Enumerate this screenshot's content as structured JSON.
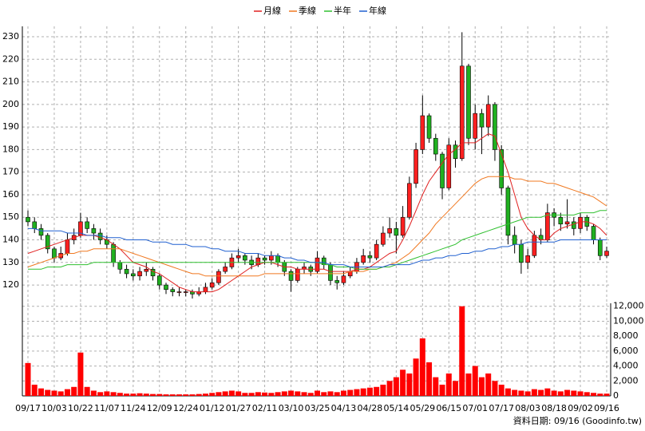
{
  "chart_data": {
    "type": "candlestick",
    "series": [
      {
        "name": "月線",
        "color": "#e02020",
        "values": [
          134,
          135,
          136,
          137,
          138,
          139,
          140,
          141,
          142,
          142,
          142,
          141,
          140,
          138,
          136,
          133,
          130,
          129,
          128,
          126,
          125,
          123,
          121,
          119,
          118,
          117,
          117,
          117,
          117,
          118,
          120,
          122,
          124,
          126,
          128,
          129,
          130,
          130,
          129,
          128,
          128,
          127,
          127,
          127,
          127,
          127,
          126,
          126,
          126,
          126,
          127,
          127,
          128,
          130,
          132,
          134,
          135,
          140,
          146,
          153,
          160,
          166,
          170,
          174,
          178,
          180,
          183,
          183,
          183,
          185,
          187,
          186,
          178,
          170,
          160,
          150,
          145,
          142,
          140,
          140,
          143,
          145,
          146,
          147,
          148,
          148,
          147,
          145,
          142
        ]
      },
      {
        "name": "季線",
        "color": "#f07820",
        "values": [
          128,
          129,
          130,
          131,
          132,
          133,
          134,
          134,
          135,
          135,
          136,
          136,
          136,
          136,
          136,
          135,
          134,
          133,
          132,
          131,
          130,
          129,
          128,
          127,
          126,
          125,
          125,
          124,
          124,
          124,
          124,
          124,
          124,
          124,
          124,
          124,
          125,
          125,
          125,
          125,
          125,
          125,
          125,
          125,
          125,
          125,
          125,
          125,
          125,
          126,
          126,
          126,
          127,
          127,
          128,
          129,
          130,
          132,
          134,
          137,
          140,
          143,
          147,
          150,
          153,
          156,
          159,
          162,
          165,
          167,
          168,
          168,
          168,
          168,
          167,
          167,
          166,
          166,
          166,
          165,
          165,
          164,
          163,
          162,
          161,
          160,
          159,
          157,
          155
        ]
      },
      {
        "name": "半年",
        "color": "#30c030",
        "values": [
          127,
          127,
          127,
          128,
          128,
          128,
          129,
          129,
          129,
          129,
          130,
          130,
          130,
          130,
          130,
          130,
          130,
          130,
          130,
          130,
          130,
          130,
          130,
          130,
          130,
          130,
          130,
          130,
          130,
          130,
          130,
          130,
          130,
          130,
          130,
          130,
          130,
          130,
          130,
          130,
          130,
          130,
          130,
          130,
          130,
          129,
          129,
          128,
          128,
          128,
          127,
          127,
          127,
          127,
          128,
          128,
          129,
          130,
          131,
          132,
          133,
          134,
          135,
          136,
          137,
          138,
          140,
          141,
          142,
          143,
          144,
          145,
          146,
          147,
          148,
          149,
          150,
          150,
          150,
          151,
          151,
          151,
          151,
          151,
          152,
          152,
          152,
          153,
          153
        ]
      },
      {
        "name": "年線",
        "color": "#2060d0",
        "values": [
          145,
          145,
          144,
          144,
          144,
          144,
          143,
          143,
          143,
          142,
          142,
          142,
          141,
          141,
          141,
          140,
          140,
          140,
          140,
          139,
          139,
          139,
          138,
          138,
          138,
          137,
          137,
          137,
          136,
          136,
          135,
          135,
          135,
          134,
          134,
          134,
          133,
          133,
          133,
          132,
          132,
          131,
          131,
          130,
          130,
          130,
          129,
          129,
          129,
          128,
          128,
          128,
          128,
          128,
          128,
          129,
          129,
          129,
          129,
          130,
          131,
          131,
          132,
          132,
          133,
          133,
          134,
          134,
          135,
          135,
          136,
          136,
          137,
          137,
          138,
          138,
          139,
          139,
          139,
          139,
          139,
          140,
          140,
          140,
          140,
          140,
          140,
          140,
          140
        ]
      }
    ],
    "categories": [
      "09/17",
      null,
      null,
      null,
      "10/03",
      null,
      null,
      null,
      "10/22",
      null,
      null,
      null,
      "11/07",
      null,
      null,
      null,
      "11/24",
      null,
      null,
      null,
      "12/09",
      null,
      null,
      null,
      "12/24",
      null,
      null,
      null,
      "01/12",
      null,
      null,
      null,
      "01/27",
      null,
      null,
      null,
      "02/11",
      null,
      null,
      null,
      "03/10",
      null,
      null,
      null,
      "03/25",
      null,
      null,
      null,
      "04/13",
      null,
      null,
      null,
      "04/28",
      null,
      null,
      null,
      "05/14",
      null,
      null,
      null,
      "05/29",
      null,
      null,
      null,
      "06/15",
      null,
      null,
      null,
      "07/01",
      null,
      null,
      null,
      "07/17",
      null,
      null,
      null,
      "08/03",
      null,
      null,
      null,
      "08/18",
      null,
      null,
      null,
      "09/02",
      null,
      null,
      null,
      "09/16"
    ],
    "open": [
      150,
      148,
      145,
      142,
      136,
      132,
      134,
      140,
      142,
      148,
      145,
      143,
      140,
      138,
      130,
      127,
      125,
      124,
      126,
      127,
      124,
      120,
      118,
      117,
      117,
      117,
      116,
      117,
      119,
      121,
      126,
      128,
      132,
      133,
      131,
      129,
      132,
      131,
      133,
      130,
      126,
      122,
      127,
      128,
      126,
      132,
      129,
      122,
      121,
      124,
      126,
      130,
      133,
      132,
      138,
      143,
      145,
      142,
      150,
      165,
      180,
      195,
      185,
      178,
      163,
      182,
      176,
      217,
      185,
      196,
      190,
      200,
      180,
      163,
      142,
      138,
      130,
      133,
      142,
      140,
      152,
      150,
      147,
      148,
      145,
      150,
      146,
      140,
      133
    ],
    "high": [
      153,
      150,
      147,
      143,
      137,
      137,
      143,
      145,
      152,
      150,
      147,
      145,
      142,
      139,
      131,
      129,
      127,
      128,
      130,
      128,
      125,
      121,
      119,
      119,
      118,
      118,
      119,
      121,
      123,
      127,
      130,
      134,
      136,
      134,
      133,
      134,
      133,
      135,
      134,
      131,
      127,
      128,
      130,
      129,
      135,
      133,
      130,
      124,
      126,
      128,
      132,
      136,
      135,
      140,
      146,
      150,
      148,
      155,
      168,
      183,
      204,
      196,
      187,
      179,
      185,
      184,
      232,
      218,
      200,
      198,
      204,
      201,
      182,
      164,
      146,
      140,
      136,
      144,
      145,
      156,
      154,
      152,
      158,
      150,
      152,
      151,
      147,
      141,
      137
    ],
    "low": [
      146,
      143,
      140,
      134,
      130,
      131,
      133,
      138,
      141,
      143,
      140,
      138,
      136,
      128,
      125,
      123,
      122,
      122,
      124,
      122,
      118,
      116,
      115,
      115,
      115,
      114,
      115,
      116,
      118,
      120,
      125,
      127,
      130,
      129,
      127,
      128,
      129,
      129,
      128,
      124,
      117,
      121,
      125,
      124,
      125,
      127,
      120,
      118,
      120,
      123,
      125,
      129,
      130,
      131,
      137,
      141,
      134,
      141,
      149,
      163,
      178,
      183,
      175,
      158,
      162,
      172,
      175,
      182,
      180,
      178,
      186,
      175,
      160,
      138,
      134,
      125,
      127,
      132,
      138,
      139,
      146,
      144,
      145,
      142,
      143,
      144,
      138,
      131,
      132
    ],
    "close": [
      148,
      145,
      142,
      136,
      132,
      134,
      140,
      142,
      148,
      145,
      143,
      140,
      138,
      130,
      127,
      125,
      124,
      126,
      127,
      124,
      120,
      118,
      117,
      117,
      117,
      116,
      117,
      119,
      121,
      126,
      128,
      132,
      133,
      131,
      129,
      132,
      131,
      133,
      130,
      126,
      122,
      127,
      128,
      126,
      132,
      129,
      122,
      121,
      124,
      126,
      130,
      133,
      132,
      138,
      143,
      145,
      142,
      150,
      165,
      180,
      195,
      185,
      178,
      163,
      182,
      176,
      217,
      185,
      196,
      190,
      200,
      180,
      163,
      142,
      138,
      130,
      133,
      142,
      140,
      152,
      150,
      147,
      148,
      145,
      150,
      146,
      140,
      133,
      135
    ],
    "volume": [
      4400,
      1500,
      1000,
      800,
      700,
      600,
      900,
      1200,
      5800,
      1200,
      700,
      500,
      600,
      500,
      400,
      300,
      300,
      350,
      300,
      250,
      250,
      200,
      200,
      200,
      200,
      200,
      250,
      300,
      400,
      500,
      600,
      700,
      600,
      400,
      400,
      500,
      450,
      400,
      500,
      600,
      700,
      600,
      500,
      400,
      700,
      500,
      600,
      500,
      700,
      800,
      900,
      1000,
      1100,
      1200,
      1500,
      2000,
      2500,
      3500,
      3000,
      5000,
      7700,
      4500,
      2500,
      1500,
      3000,
      2000,
      12000,
      3000,
      4000,
      2500,
      3000,
      2000,
      1500,
      1000,
      800,
      700,
      600,
      900,
      800,
      1000,
      700,
      600,
      800,
      700,
      600,
      500,
      400,
      300,
      300
    ],
    "ylim": [
      112.6,
      234.6
    ],
    "yticks": [
      120,
      130,
      140,
      150,
      160,
      170,
      180,
      190,
      200,
      210,
      220,
      230
    ],
    "y2lim": [
      0,
      12400
    ],
    "y2ticks": [
      0,
      {
        "value": 2000,
        "label": "2,000"
      },
      {
        "value": 4000,
        "label": "4,000"
      },
      {
        "value": 6000,
        "label": "6,000"
      },
      {
        "value": 8000,
        "label": "8,000"
      },
      {
        "value": 10000,
        "label": "10,000"
      },
      {
        "value": 12000,
        "label": "12,000"
      }
    ],
    "up_color": "#ff2020",
    "down_color": "#20b020",
    "volume_color": "#ff0000",
    "grid": true,
    "footer": "資料日期: 09/16 (Goodinfo.tw)"
  }
}
